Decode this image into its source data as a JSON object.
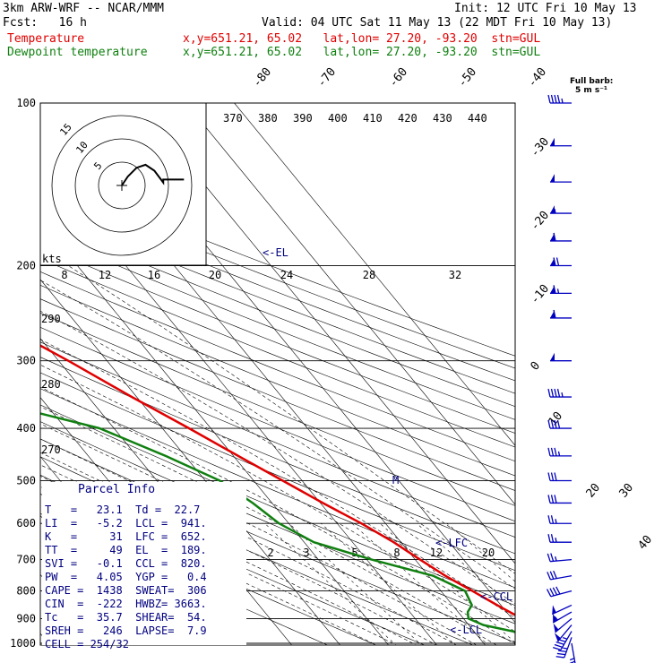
{
  "header": {
    "model": "3km ARW-WRF -- NCAR/MMM",
    "init": "Init: 12 UTC Fri 10 May 13",
    "fcst": "Fcst:   16 h",
    "valid": "Valid: 04 UTC Sat 11 May 13 (22 MDT Fri 10 May 13)",
    "temp_label": "Temperature",
    "temp_info": "x,y=651.21, 65.02   lat,lon= 27.20, -93.20  stn=GUL",
    "dew_label": "Dewpoint temperature",
    "dew_info": "x,y=651.21, 65.02   lat,lon= 27.20, -93.20  stn=GUL"
  },
  "barb_legend": {
    "title": "Full barb:",
    "value": "5 m s⁻¹"
  },
  "hodograph": {
    "ring_labels": [
      "15",
      "10",
      "5"
    ],
    "units_label": "kts"
  },
  "parcel_info": {
    "title": "Parcel Info",
    "rows": [
      [
        "T   =   23.1  Td =  22.7"
      ],
      [
        "LI  =   -5.2  LCL =  941."
      ],
      [
        "K   =     31  LFC =  652."
      ],
      [
        "TT  =     49  EL  =  189."
      ],
      [
        "SVI =   -0.1  CCL =  820."
      ],
      [
        "PW  =   4.05  YGP =   0.4"
      ],
      [
        "CAPE =  1438  SWEAT=  306"
      ],
      [
        "CIN  =  -222  HWBZ= 3663."
      ],
      [
        "Tc   =  35.7  SHEAR=  54."
      ],
      [
        "SREH =   246  LAPSE=  7.9"
      ],
      [
        "CELL = 254/32"
      ]
    ]
  },
  "level_labels": [
    "<-EL",
    "<-LFC",
    "<-CCL",
    "<-LCL"
  ],
  "colors": {
    "temperature": "#e00000",
    "dewpoint": "#108010",
    "barbs": "#0000c0",
    "labels": "#000080"
  },
  "chart_data": {
    "type": "line",
    "title": "",
    "y_axis": {
      "quantity": "pressure",
      "unit": "hPa",
      "scale": "log",
      "ticks": [
        100,
        200,
        300,
        400,
        500,
        600,
        700,
        800,
        900,
        1000
      ]
    },
    "isotherm_labels": [
      "-80",
      "-70",
      "-60",
      "-50",
      "-40",
      "-30",
      "-20",
      "-10",
      "0",
      "10",
      "20",
      "30",
      "40"
    ],
    "theta_e_labels": [
      "370",
      "380",
      "390",
      "400",
      "410",
      "420",
      "430",
      "440"
    ],
    "mixing_ratio_labels": [
      "2",
      "3",
      "5",
      "8",
      "12",
      "20"
    ],
    "dry_adiabat_labels": [
      "290",
      "280",
      "270"
    ],
    "hodo_scale_labels": [
      "8",
      "12",
      "16",
      "20",
      "24",
      "28",
      "32"
    ],
    "series": [
      {
        "name": "Temperature",
        "points": [
          [
            1000,
            23.1
          ],
          [
            975,
            25.5
          ],
          [
            950,
            25.0
          ],
          [
            925,
            23.5
          ],
          [
            900,
            22.0
          ],
          [
            850,
            19.2
          ],
          [
            800,
            16.5
          ],
          [
            750,
            13.5
          ],
          [
            700,
            11.0
          ],
          [
            650,
            8.5
          ],
          [
            600,
            5.0
          ],
          [
            550,
            0.5
          ],
          [
            500,
            -4.0
          ],
          [
            450,
            -9.0
          ],
          [
            400,
            -14.5
          ],
          [
            350,
            -21.0
          ],
          [
            300,
            -28.0
          ],
          [
            250,
            -37.0
          ],
          [
            200,
            -47.5
          ],
          [
            189,
            -50.5
          ],
          [
            170,
            -56.0
          ],
          [
            150,
            -62.0
          ],
          [
            130,
            -65.0
          ],
          [
            115,
            -67.0
          ],
          [
            100,
            -68.5
          ]
        ]
      },
      {
        "name": "Dewpoint temperature",
        "points": [
          [
            1000,
            22.7
          ],
          [
            975,
            20.5
          ],
          [
            950,
            18.0
          ],
          [
            925,
            13.0
          ],
          [
            900,
            11.0
          ],
          [
            875,
            12.0
          ],
          [
            850,
            14.0
          ],
          [
            800,
            15.0
          ],
          [
            750,
            11.0
          ],
          [
            700,
            1.0
          ],
          [
            650,
            -8.0
          ],
          [
            600,
            -12.0
          ],
          [
            550,
            -14.0
          ],
          [
            500,
            -17.0
          ],
          [
            450,
            -24.0
          ],
          [
            400,
            -33.0
          ],
          [
            370,
            -45.0
          ],
          [
            350,
            -44.5
          ],
          [
            320,
            -43.5
          ],
          [
            300,
            -44.0
          ],
          [
            280,
            -45.5
          ],
          [
            250,
            -47.5
          ],
          [
            220,
            -51.0
          ],
          [
            200,
            -54.0
          ],
          [
            170,
            -62.0
          ],
          [
            150,
            -66.0
          ],
          [
            130,
            -70.0
          ],
          [
            115,
            -71.5
          ],
          [
            100,
            -72.5
          ]
        ]
      }
    ],
    "wind_barbs": [
      [
        1000,
        170,
        12
      ],
      [
        975,
        200,
        17
      ],
      [
        950,
        210,
        22
      ],
      [
        925,
        220,
        24
      ],
      [
        900,
        230,
        26
      ],
      [
        875,
        240,
        27
      ],
      [
        850,
        245,
        25
      ],
      [
        800,
        255,
        20
      ],
      [
        750,
        260,
        15
      ],
      [
        700,
        265,
        12
      ],
      [
        650,
        270,
        12
      ],
      [
        600,
        270,
        13
      ],
      [
        550,
        270,
        15
      ],
      [
        500,
        270,
        16
      ],
      [
        450,
        270,
        18
      ],
      [
        400,
        270,
        20
      ],
      [
        350,
        270,
        22
      ],
      [
        300,
        270,
        26
      ],
      [
        250,
        270,
        30
      ],
      [
        225,
        270,
        33
      ],
      [
        200,
        270,
        35
      ],
      [
        180,
        270,
        30
      ],
      [
        160,
        270,
        28
      ],
      [
        140,
        270,
        26
      ],
      [
        120,
        270,
        24
      ],
      [
        100,
        270,
        22
      ]
    ],
    "hodograph_trace": [
      [
        0,
        0
      ],
      [
        2,
        3
      ],
      [
        5,
        6
      ],
      [
        8,
        7
      ],
      [
        11,
        5
      ],
      [
        14,
        1
      ],
      [
        14,
        2
      ],
      [
        19,
        2
      ],
      [
        21,
        2
      ]
    ]
  }
}
